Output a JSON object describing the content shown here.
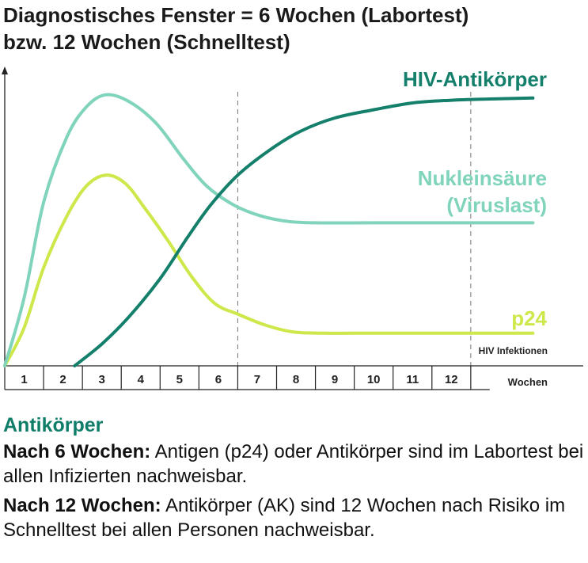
{
  "title": {
    "line1": "Diagnostisches Fenster = 6 Wochen (Labortest)",
    "line2": "bzw. 12 Wochen (Schnelltest)"
  },
  "chart_data": {
    "type": "line",
    "title": "Diagnostisches Fenster = 6 Wochen (Labortest) bzw. 12 Wochen (Schnelltest)",
    "xlabel": "Wochen",
    "ylabel": "",
    "xlim": [
      0,
      14
    ],
    "ylim": [
      0,
      100
    ],
    "categories": [
      "1",
      "2",
      "3",
      "4",
      "5",
      "6",
      "7",
      "8",
      "9",
      "10",
      "11",
      "12"
    ],
    "reference_lines": [
      {
        "x": 6,
        "style": "dashed"
      },
      {
        "x": 12,
        "style": "dashed"
      }
    ],
    "annotations": [
      "HIV Infektionen"
    ],
    "series": [
      {
        "name": "HIV-Antikörper",
        "color": "#14806b",
        "points": [
          [
            1.8,
            0
          ],
          [
            2.5,
            8
          ],
          [
            3.2,
            18
          ],
          [
            4.0,
            32
          ],
          [
            4.7,
            47
          ],
          [
            5.3,
            59
          ],
          [
            6.0,
            70
          ],
          [
            6.8,
            79
          ],
          [
            7.6,
            86
          ],
          [
            8.5,
            91
          ],
          [
            9.5,
            94
          ],
          [
            10.5,
            96.5
          ],
          [
            11.5,
            97.5
          ],
          [
            12.6,
            98
          ],
          [
            13.6,
            98.3
          ]
        ]
      },
      {
        "name": "Nukleinsäure (Viruslast)",
        "color": "#7fd4bb",
        "points": [
          [
            0,
            0
          ],
          [
            0.5,
            25
          ],
          [
            1.0,
            60
          ],
          [
            1.6,
            84
          ],
          [
            2.1,
            95
          ],
          [
            2.6,
            99.5
          ],
          [
            3.2,
            97
          ],
          [
            3.9,
            89
          ],
          [
            4.6,
            76
          ],
          [
            5.2,
            66
          ],
          [
            5.9,
            59
          ],
          [
            6.6,
            55
          ],
          [
            7.3,
            53
          ],
          [
            8.0,
            52.5
          ],
          [
            9.5,
            52.5
          ],
          [
            11.5,
            52.5
          ],
          [
            13.6,
            52.5
          ]
        ]
      },
      {
        "name": "p24",
        "color": "#cde84a",
        "points": [
          [
            0,
            0
          ],
          [
            0.5,
            14
          ],
          [
            1.0,
            36
          ],
          [
            1.6,
            55
          ],
          [
            2.1,
            66
          ],
          [
            2.6,
            70
          ],
          [
            3.1,
            67
          ],
          [
            3.6,
            58
          ],
          [
            4.2,
            46
          ],
          [
            4.8,
            33
          ],
          [
            5.4,
            23
          ],
          [
            6.0,
            19
          ],
          [
            6.7,
            15
          ],
          [
            7.4,
            12.5
          ],
          [
            8.2,
            12
          ],
          [
            10.0,
            12
          ],
          [
            13.6,
            12
          ]
        ]
      }
    ]
  },
  "section": {
    "heading": "Antikörper",
    "p1_bold": "Nach 6 Wochen:",
    "p1_text": " Antigen (p24) oder Antikörper sind im Labortest bei allen Infizierten nachweisbar.",
    "p2_bold": "Nach 12 Wochen:",
    "p2_text": " Antikörper (AK) sind 12 Wochen nach Risiko im Schnelltest bei allen Personen nachweisbar."
  }
}
